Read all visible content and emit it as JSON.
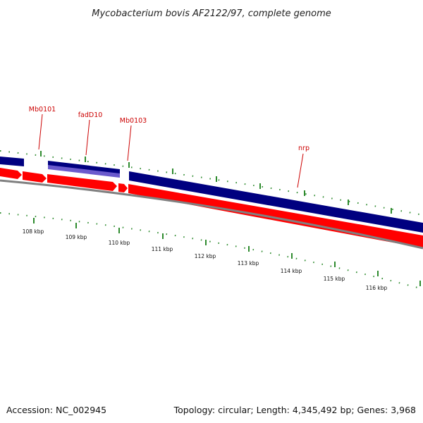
{
  "title": "Mycobacterium bovis AF2122/97, complete genome",
  "footer": {
    "accession": "Accession: NC_002945",
    "summary": "Topology: circular; Length: 4,345,492 bp; Genes: 3,968"
  },
  "gene_labels": [
    "Mb0101",
    "fadD10",
    "Mb0103",
    "nrp"
  ],
  "scale_labels": [
    "108 kbp",
    "109 kbp",
    "110 kbp",
    "111 kbp",
    "112 kbp",
    "113 kbp",
    "114 kbp",
    "115 kbp",
    "116 kbp"
  ],
  "colors": {
    "forward_strand": "#000080",
    "forward_highlight": "#6a5acd",
    "reverse_strand": "#ff0000",
    "backbone": "#808080",
    "ticks": "#2e8b2e",
    "gene_label": "#cc0000"
  }
}
